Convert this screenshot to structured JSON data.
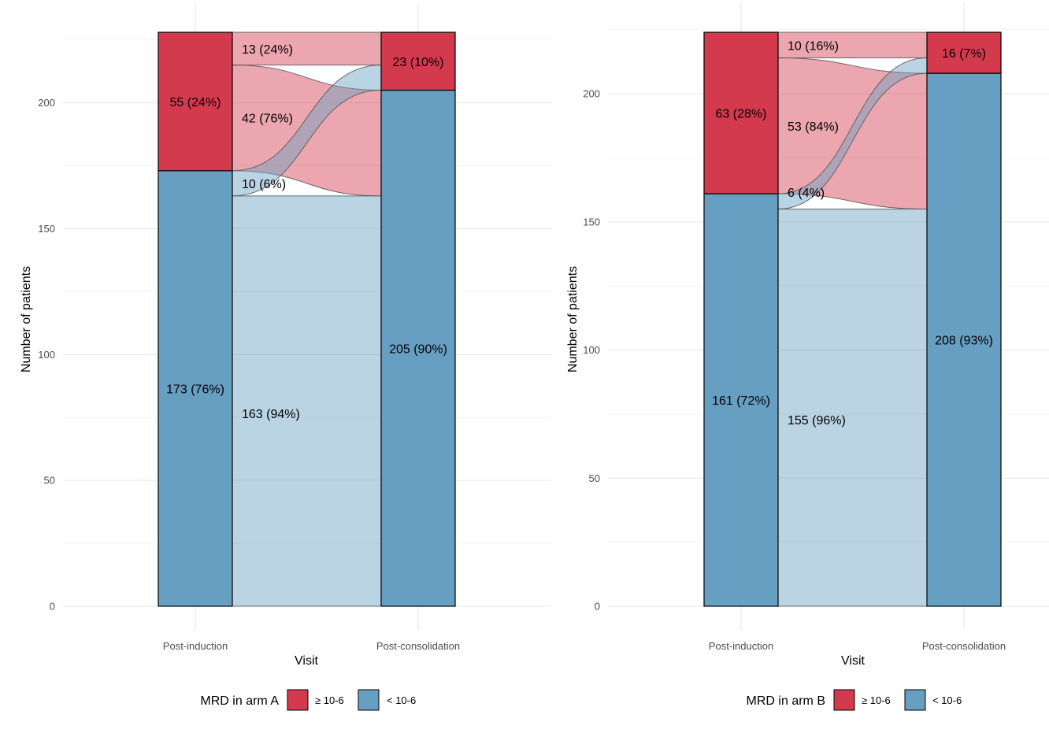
{
  "chart_data": [
    {
      "type": "alluvial",
      "ylabel": "Number of patients",
      "xlabel": "Visit",
      "ylim": [
        0,
        228
      ],
      "y_ticks": [
        0,
        50,
        100,
        150,
        200
      ],
      "stages": [
        "Post-induction",
        "Post-consolidation"
      ],
      "colors": {
        "high": "#d43a4e",
        "low": "#679fc3"
      },
      "legend": {
        "title": "MRD in arm A",
        "entries": [
          {
            "key": "high",
            "label": "≥ 10-6"
          },
          {
            "key": "low",
            "label": "< 10-6"
          }
        ]
      },
      "strata": [
        {
          "stage": 0,
          "key": "high",
          "value": 55,
          "label": "55 (24%)"
        },
        {
          "stage": 0,
          "key": "low",
          "value": 173,
          "label": "173 (76%)"
        },
        {
          "stage": 1,
          "key": "high",
          "value": 23,
          "label": "23 (10%)"
        },
        {
          "stage": 1,
          "key": "low",
          "value": 205,
          "label": "205 (90%)"
        }
      ],
      "flows": [
        {
          "from": "high",
          "to": "high",
          "value": 13,
          "label": "13 (24%)"
        },
        {
          "from": "high",
          "to": "low",
          "value": 42,
          "label": "42 (76%)"
        },
        {
          "from": "low",
          "to": "high",
          "value": 10,
          "label": "10 (6%)"
        },
        {
          "from": "low",
          "to": "low",
          "value": 163,
          "label": "163 (94%)"
        }
      ]
    },
    {
      "type": "alluvial",
      "ylabel": "Number of patients",
      "xlabel": "Visit",
      "ylim": [
        0,
        224
      ],
      "y_ticks": [
        0,
        50,
        100,
        150,
        200
      ],
      "stages": [
        "Post-induction",
        "Post-consolidation"
      ],
      "colors": {
        "high": "#d43a4e",
        "low": "#679fc3"
      },
      "legend": {
        "title": "MRD in arm B",
        "entries": [
          {
            "key": "high",
            "label": "≥ 10-6"
          },
          {
            "key": "low",
            "label": "< 10-6"
          }
        ]
      },
      "strata": [
        {
          "stage": 0,
          "key": "high",
          "value": 63,
          "label": "63 (28%)"
        },
        {
          "stage": 0,
          "key": "low",
          "value": 161,
          "label": "161 (72%)"
        },
        {
          "stage": 1,
          "key": "high",
          "value": 16,
          "label": "16 (7%)"
        },
        {
          "stage": 1,
          "key": "low",
          "value": 208,
          "label": "208 (93%)"
        }
      ],
      "flows": [
        {
          "from": "high",
          "to": "high",
          "value": 10,
          "label": "10 (16%)"
        },
        {
          "from": "high",
          "to": "low",
          "value": 53,
          "label": "53 (84%)"
        },
        {
          "from": "low",
          "to": "high",
          "value": 6,
          "label": "6 (4%)"
        },
        {
          "from": "low",
          "to": "low",
          "value": 155,
          "label": "155 (96%)"
        }
      ]
    }
  ]
}
